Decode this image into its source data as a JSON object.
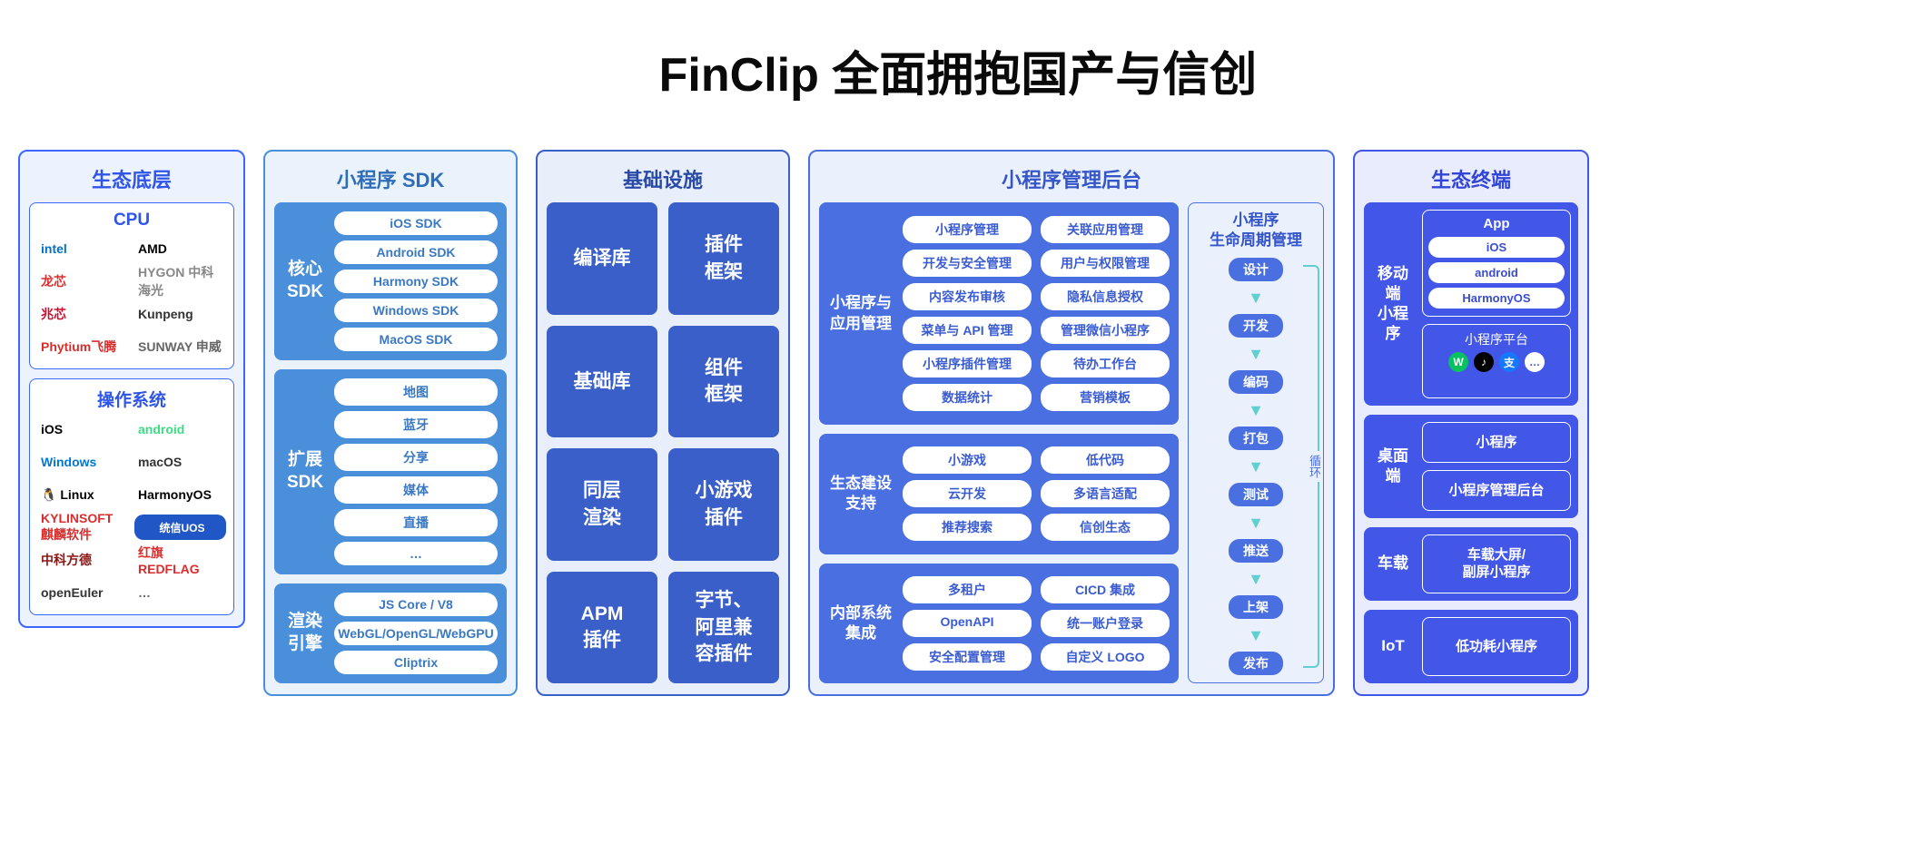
{
  "title": "FinClip 全面拥抱国产与信创",
  "colors": {
    "col1_border": "#3b66ff",
    "col1_bg": "#edf2ff",
    "col1_text": "#2f55e8",
    "col2_border": "#4a8fd9",
    "col2_bg": "#eaf3fb",
    "col2_fill": "#4a8fd9",
    "col3_border": "#3b5fc9",
    "col3_bg": "#e9eefb",
    "col3_fill": "#3b5fc9",
    "col4_border": "#4a6fe0",
    "col4_bg": "#ebf0fd",
    "col4_fill": "#4a6fe0",
    "col5_border": "#4256e8",
    "col5_bg": "#e9ecfd",
    "col5_fill": "#4256e8",
    "lifecycle_arrow": "#5fcfd1",
    "white": "#ffffff"
  },
  "col1": {
    "title": "生态底层",
    "cpu": {
      "title": "CPU",
      "items": [
        {
          "label": "intel",
          "color": "#0071c5"
        },
        {
          "label": "AMD",
          "color": "#000000"
        },
        {
          "label": "龙芯",
          "color": "#d92e2e"
        },
        {
          "label": "HYGON 中科海光",
          "color": "#888888"
        },
        {
          "label": "兆芯",
          "color": "#c8102e"
        },
        {
          "label": "Kunpeng",
          "color": "#333333"
        },
        {
          "label": "Phytium飞腾",
          "color": "#d92e2e"
        },
        {
          "label": "SUNWAY 申威",
          "color": "#666666"
        }
      ]
    },
    "os": {
      "title": "操作系统",
      "items": [
        {
          "label": " iOS",
          "color": "#000000"
        },
        {
          "label": "android",
          "color": "#3ddc84"
        },
        {
          "label": "Windows",
          "color": "#0078d4"
        },
        {
          "label": "macOS",
          "color": "#333333"
        },
        {
          "label": "🐧 Linux",
          "color": "#000000"
        },
        {
          "label": "HarmonyOS",
          "color": "#000000"
        },
        {
          "label": "KYLINSOFT 麒麟软件",
          "color": "#d92e2e"
        },
        {
          "label": "统信UOS",
          "color": "#ffffff",
          "bg": "#2056c6"
        },
        {
          "label": "中科方德",
          "color": "#8c1515"
        },
        {
          "label": "红旗 REDFLAG",
          "color": "#d92e2e"
        },
        {
          "label": "openEuler",
          "color": "#333333"
        },
        {
          "label": "…",
          "color": "#666666"
        }
      ]
    }
  },
  "col2": {
    "title": "小程序 SDK",
    "groups": [
      {
        "label": "核心\nSDK",
        "items": [
          "iOS SDK",
          "Android SDK",
          "Harmony SDK",
          "Windows SDK",
          "MacOS SDK"
        ]
      },
      {
        "label": "扩展\nSDK",
        "items": [
          "地图",
          "蓝牙",
          "分享",
          "媒体",
          "直播",
          "…"
        ]
      },
      {
        "label": "渲染\n引擎",
        "items": [
          "JS Core / V8",
          "WebGL/OpenGL/WebGPU",
          "Cliptrix"
        ]
      }
    ]
  },
  "col3": {
    "title": "基础设施",
    "blocks": [
      "编译库",
      "插件\n框架",
      "基础库",
      "组件\n框架",
      "同层\n渲染",
      "小游戏\n插件",
      "APM\n插件",
      "字节、\n阿里兼\n容插件"
    ]
  },
  "col4": {
    "title": "小程序管理后台",
    "groups": [
      {
        "label": "小程序与\n应用管理",
        "items": [
          "小程序管理",
          "关联应用管理",
          "开发与安全管理",
          "用户与权限管理",
          "内容发布审核",
          "隐私信息授权",
          "菜单与 API 管理",
          "管理微信小程序",
          "小程序插件管理",
          "待办工作台",
          "数据统计",
          "营销模板"
        ]
      },
      {
        "label": "生态建设\n支持",
        "items": [
          "小游戏",
          "低代码",
          "云开发",
          "多语言适配",
          "推荐搜索",
          "信创生态"
        ]
      },
      {
        "label": "内部系统\n集成",
        "items": [
          "多租户",
          "CICD 集成",
          "OpenAPI",
          "统一账户登录",
          "安全配置管理",
          "自定义 LOGO"
        ]
      }
    ],
    "lifecycle": {
      "title": "小程序\n生命周期管理",
      "steps": [
        "设计",
        "开发",
        "编码",
        "打包",
        "测试",
        "推送",
        "上架",
        "发布"
      ],
      "loop_label": "循环"
    }
  },
  "col5": {
    "title": "生态终端",
    "groups": [
      {
        "label": "移动端\n小程序",
        "app_title": "App",
        "app_items": [
          " iOS",
          "android",
          "HarmonyOS"
        ],
        "platform_title": "小程序平台",
        "platform_icons": [
          {
            "glyph": "W",
            "bg": "#07c160",
            "fg": "#ffffff"
          },
          {
            "glyph": "♪",
            "bg": "#000000",
            "fg": "#ffffff"
          },
          {
            "glyph": "支",
            "bg": "#1677ff",
            "fg": "#ffffff"
          },
          {
            "glyph": "…",
            "bg": "#ffffff",
            "fg": "#4256e8"
          }
        ]
      },
      {
        "label": "桌面端",
        "boxes": [
          "小程序",
          "小程序管理后台"
        ]
      },
      {
        "label": "车载",
        "boxes": [
          "车载大屏/\n副屏小程序"
        ]
      },
      {
        "label": "IoT",
        "boxes": [
          "低功耗小程序"
        ]
      }
    ]
  }
}
